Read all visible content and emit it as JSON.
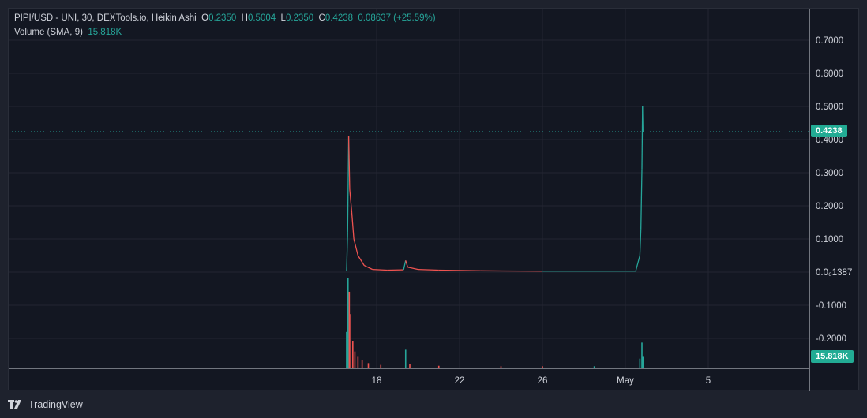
{
  "header": {
    "symbol": "PIPI/USD - UNI, 30, DEXTools.io, Heikin Ashi",
    "o_label": "O",
    "o_value": "0.2350",
    "h_label": "H",
    "h_value": "0.5004",
    "l_label": "L",
    "l_value": "0.2350",
    "c_label": "C",
    "c_value": "0.4238",
    "change": "0.08637 (+25.59%)",
    "volume_label": "Volume (SMA, 9)",
    "volume_value": "15.818K"
  },
  "tags": {
    "last_price": "0.4238",
    "volume": "15.818K"
  },
  "footer": {
    "brand": "TradingView"
  },
  "colors": {
    "up": "#26a69a",
    "down": "#ef5350",
    "tag": "#22ab94",
    "background": "#131722",
    "grid": "#232632"
  },
  "chart_data": {
    "type": "line",
    "title": "PIPI/USD - UNI, 30, DEXTools.io, Heikin Ashi",
    "x_ticks": [
      "18",
      "22",
      "26",
      "May",
      "5"
    ],
    "y_ticks": [
      "0.7000",
      "0.6000",
      "0.5000",
      "0.4000",
      "0.3000",
      "0.2000",
      "0.1000",
      "0.0₀1387",
      "-0.1000",
      "-0.2000"
    ],
    "ylim": [
      -0.29,
      0.79
    ],
    "grid": true,
    "last_price": 0.4238,
    "series": [
      {
        "name": "PIPI/USD",
        "points": [
          {
            "x": 16.55,
            "y": 0.003,
            "dir": "up"
          },
          {
            "x": 16.6,
            "y": 0.12,
            "dir": "up"
          },
          {
            "x": 16.65,
            "y": 0.41,
            "dir": "up"
          },
          {
            "x": 16.7,
            "y": 0.25,
            "dir": "down"
          },
          {
            "x": 16.8,
            "y": 0.18,
            "dir": "down"
          },
          {
            "x": 16.9,
            "y": 0.1,
            "dir": "down"
          },
          {
            "x": 17.1,
            "y": 0.05,
            "dir": "down"
          },
          {
            "x": 17.4,
            "y": 0.02,
            "dir": "down"
          },
          {
            "x": 17.8,
            "y": 0.008,
            "dir": "down"
          },
          {
            "x": 18.5,
            "y": 0.006,
            "dir": "down"
          },
          {
            "x": 19.3,
            "y": 0.007,
            "dir": "down"
          },
          {
            "x": 19.4,
            "y": 0.035,
            "dir": "up"
          },
          {
            "x": 19.5,
            "y": 0.015,
            "dir": "down"
          },
          {
            "x": 20.0,
            "y": 0.008,
            "dir": "down"
          },
          {
            "x": 21.0,
            "y": 0.006,
            "dir": "down"
          },
          {
            "x": 23.0,
            "y": 0.004,
            "dir": "down"
          },
          {
            "x": 26.0,
            "y": 0.003,
            "dir": "down"
          },
          {
            "x": 28.0,
            "y": 0.003,
            "dir": "up"
          },
          {
            "x": 30.5,
            "y": 0.003,
            "dir": "up"
          },
          {
            "x": 30.7,
            "y": 0.05,
            "dir": "up"
          },
          {
            "x": 30.75,
            "y": 0.13,
            "dir": "up"
          },
          {
            "x": 30.8,
            "y": 0.31,
            "dir": "up"
          },
          {
            "x": 30.83,
            "y": 0.5,
            "dir": "up"
          },
          {
            "x": 30.85,
            "y": 0.4238,
            "dir": "up"
          }
        ]
      }
    ],
    "volume_series": {
      "name": "Volume (SMA, 9)",
      "bars": [
        {
          "x": 16.55,
          "v": 0.4,
          "dir": "up"
        },
        {
          "x": 16.62,
          "v": 1.0,
          "dir": "up"
        },
        {
          "x": 16.68,
          "v": 0.85,
          "dir": "down"
        },
        {
          "x": 16.75,
          "v": 0.6,
          "dir": "down"
        },
        {
          "x": 16.85,
          "v": 0.3,
          "dir": "down"
        },
        {
          "x": 16.95,
          "v": 0.18,
          "dir": "down"
        },
        {
          "x": 17.1,
          "v": 0.12,
          "dir": "down"
        },
        {
          "x": 17.3,
          "v": 0.08,
          "dir": "down"
        },
        {
          "x": 17.6,
          "v": 0.05,
          "dir": "down"
        },
        {
          "x": 18.2,
          "v": 0.03,
          "dir": "down"
        },
        {
          "x": 19.4,
          "v": 0.2,
          "dir": "up"
        },
        {
          "x": 19.6,
          "v": 0.04,
          "dir": "down"
        },
        {
          "x": 21.0,
          "v": 0.02,
          "dir": "down"
        },
        {
          "x": 24.0,
          "v": 0.015,
          "dir": "down"
        },
        {
          "x": 26.0,
          "v": 0.015,
          "dir": "down"
        },
        {
          "x": 28.5,
          "v": 0.015,
          "dir": "up"
        },
        {
          "x": 30.7,
          "v": 0.1,
          "dir": "up"
        },
        {
          "x": 30.8,
          "v": 0.28,
          "dir": "up"
        },
        {
          "x": 30.85,
          "v": 0.12,
          "dir": "up"
        }
      ]
    }
  }
}
